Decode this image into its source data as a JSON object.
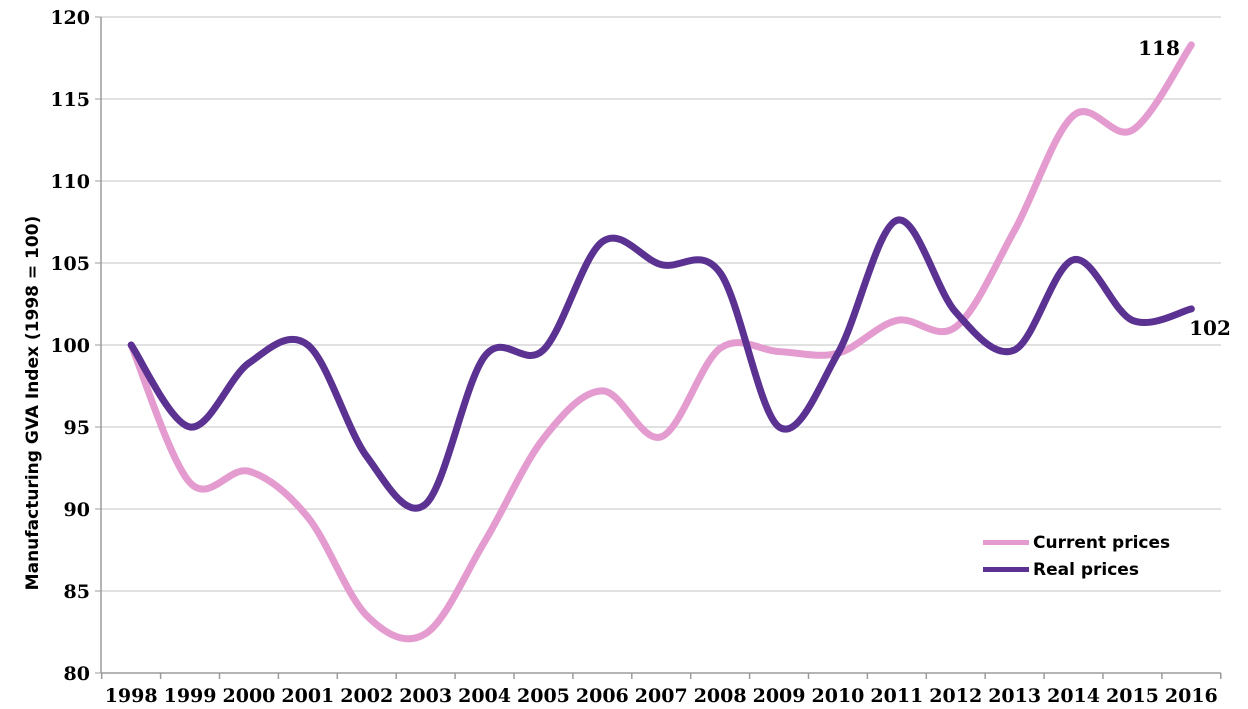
{
  "chart_data": {
    "type": "line",
    "title": "",
    "xlabel": "",
    "ylabel": "Manufacturing GVA Index (1998 = 100)",
    "categories": [
      "1998",
      "1999",
      "2000",
      "2001",
      "2002",
      "2003",
      "2004",
      "2005",
      "2006",
      "2007",
      "2008",
      "2009",
      "2010",
      "2011",
      "2012",
      "2013",
      "2014",
      "2015",
      "2016"
    ],
    "series": [
      {
        "name": "Current prices",
        "color": "#E49BCF",
        "end_label": "118",
        "values": [
          100,
          91.6,
          92.3,
          89.5,
          83.5,
          82.4,
          88.0,
          94.3,
          97.2,
          94.4,
          99.8,
          99.6,
          99.5,
          101.5,
          101.1,
          107.0,
          114.0,
          113.1,
          118.3
        ]
      },
      {
        "name": "Real prices",
        "color": "#5B3192",
        "end_label": "102",
        "values": [
          100,
          95.0,
          98.9,
          100.0,
          93.2,
          90.3,
          99.3,
          99.7,
          106.3,
          104.9,
          104.4,
          95.0,
          99.5,
          107.6,
          102.0,
          99.7,
          105.2,
          101.5,
          102.2
        ]
      }
    ],
    "ylim": [
      80,
      120
    ],
    "ytick_step": 5,
    "yticks": [
      80,
      85,
      90,
      95,
      100,
      105,
      110,
      115,
      120
    ],
    "grid": true,
    "smoothed": true,
    "legend_position": "right-middle"
  },
  "colors": {
    "gridline": "#C3C3C3",
    "axis": "#9B9B9B",
    "text": "#000000",
    "background": "#FFFFFF"
  }
}
